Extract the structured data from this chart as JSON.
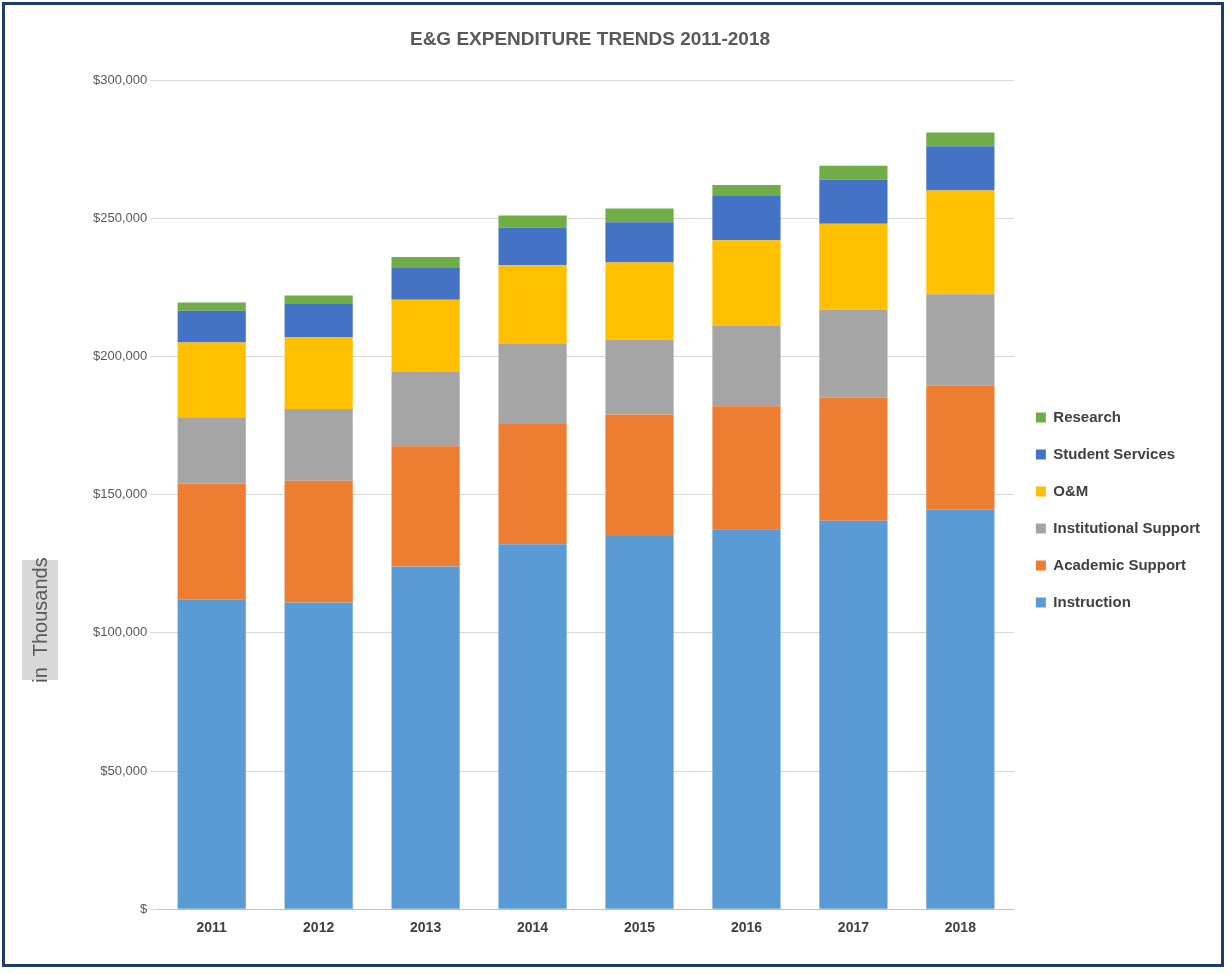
{
  "chart_data": {
    "type": "bar",
    "title": "E&G EXPENDITURE TRENDS 2011-2018",
    "ylabel": "in  Thousands",
    "stacked": true,
    "grid": "y",
    "legend": "right",
    "categories": [
      "2011",
      "2012",
      "2013",
      "2014",
      "2015",
      "2016",
      "2017",
      "2018"
    ],
    "ylim": [
      0,
      300000
    ],
    "yticks": [
      {
        "value": 0,
        "label": "$"
      },
      {
        "value": 50000,
        "label": "$50,000"
      },
      {
        "value": 100000,
        "label": "$100,000"
      },
      {
        "value": 150000,
        "label": "$150,000"
      },
      {
        "value": 200000,
        "label": "$200,000"
      },
      {
        "value": 250000,
        "label": "$250,000"
      },
      {
        "value": 300000,
        "label": "$300,000"
      }
    ],
    "series": [
      {
        "name": "Instruction",
        "color": "#5b9bd5",
        "values": [
          112000,
          111000,
          124000,
          132000,
          135000,
          137500,
          140500,
          144500
        ]
      },
      {
        "name": "Academic Support",
        "color": "#ed7d31",
        "values": [
          42000,
          44000,
          43500,
          43500,
          44000,
          44500,
          44500,
          45000
        ]
      },
      {
        "name": "Institutional Support",
        "color": "#a5a5a5",
        "values": [
          24000,
          26000,
          27000,
          29000,
          27000,
          29000,
          32000,
          33000
        ]
      },
      {
        "name": "O&M",
        "color": "#ffc000",
        "values": [
          27000,
          26000,
          26000,
          28500,
          28000,
          31000,
          31000,
          37500
        ]
      },
      {
        "name": "Student Services",
        "color": "#4472c4",
        "values": [
          11500,
          12000,
          11500,
          13500,
          14500,
          16000,
          16000,
          16000
        ]
      },
      {
        "name": "Research",
        "color": "#70ad47",
        "values": [
          3000,
          3000,
          4000,
          4500,
          5000,
          4000,
          5000,
          5000
        ]
      }
    ]
  }
}
